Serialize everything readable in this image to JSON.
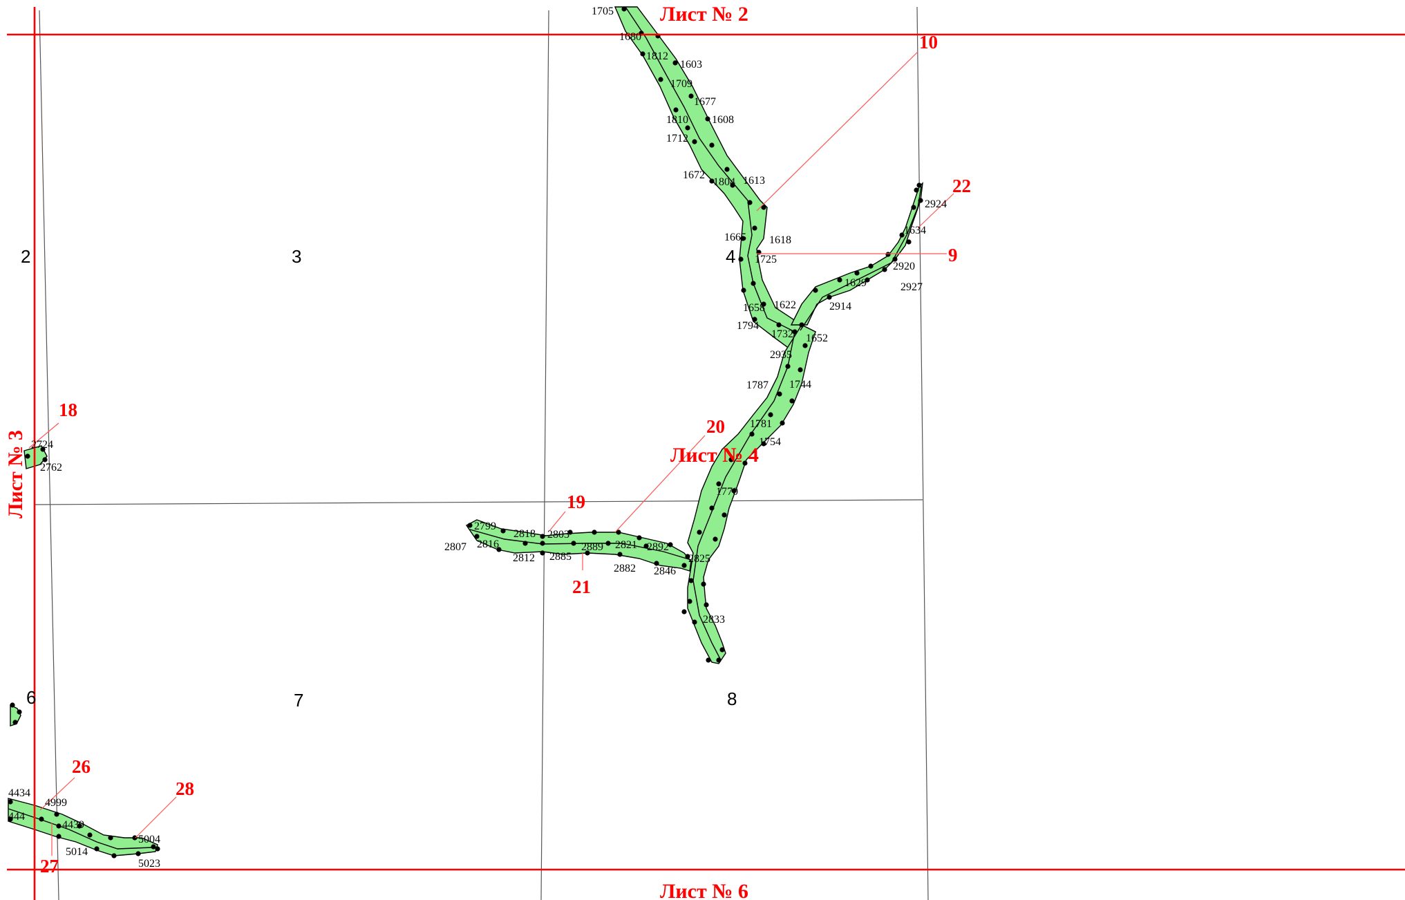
{
  "sheets": {
    "top": "Лист № 2",
    "center": "Лист № 4",
    "left": "Лист № 3",
    "bottom": "Лист № 6"
  },
  "cells": [
    "2",
    "3",
    "4",
    "6",
    "7",
    "8"
  ],
  "callouts": [
    "10",
    "22",
    "9",
    "18",
    "20",
    "19",
    "21",
    "26",
    "28",
    "27"
  ],
  "points": {
    "p1705": "1705",
    "p1680": "1680",
    "p1812": "1812",
    "p1603": "1603",
    "p1709": "1709",
    "p1677": "1677",
    "p1810": "1810",
    "p1608": "1608",
    "p1712": "1712",
    "p1672": "1672",
    "p1804": "1804",
    "p1613": "1613",
    "p1665": "1665",
    "p1618": "1618",
    "p1725": "1725",
    "p1658": "1658",
    "p1622": "1622",
    "p1794": "1794",
    "p1732": "1732",
    "p1652": "1652",
    "p2935": "2935",
    "p1787": "1787",
    "p1744": "1744",
    "p1781": "1781",
    "p1754": "1754",
    "p1770": "1770",
    "p2924": "2924",
    "p1634": "1634",
    "p2920": "2920",
    "p2927": "2927",
    "p1629": "1629",
    "p2914": "2914",
    "p2724": "2724",
    "p2762": "2762",
    "p2799": "2799",
    "p2807": "2807",
    "p2816": "2816",
    "p2818": "2818",
    "p2812": "2812",
    "p2803": "2803",
    "p2885": "2885",
    "p2889": "2889",
    "p2821": "2821",
    "p2882": "2882",
    "p2892": "2892",
    "p2846": "2846",
    "p2825": "2825",
    "p2833": "2833",
    "p4434": "4434",
    "p444": "444",
    "p4999": "4999",
    "p4439": "4439",
    "p5014": "5014",
    "p5004": "5004",
    "p5023": "5023"
  },
  "colors": {
    "corridor_fill": "#90ee90",
    "sheet_lines": "#ff0000",
    "grid_lines": "#555555",
    "callout_text": "#ff0000"
  }
}
